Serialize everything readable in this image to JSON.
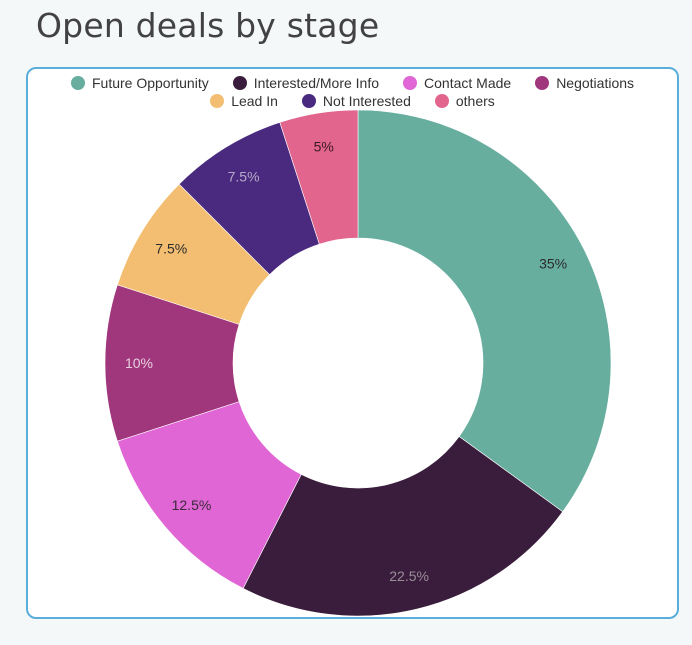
{
  "title": "Open deals by stage",
  "legend": {
    "rows": [
      [
        0,
        1,
        2,
        3
      ],
      [
        4,
        5,
        6
      ]
    ]
  },
  "slices": [
    {
      "label": "Future Opportunity",
      "value": 35,
      "display": "35%",
      "color": "#67ae9f",
      "text_color": "#2b2b2b"
    },
    {
      "label": "Interested/More Info",
      "value": 22.5,
      "display": "22.5%",
      "color": "#3a1d3c",
      "text_color": "#9a8d9a"
    },
    {
      "label": "Contact Made",
      "value": 12.5,
      "display": "12.5%",
      "color": "#e066d6",
      "text_color": "#3a2a3a"
    },
    {
      "label": "Negotiations",
      "value": 10,
      "display": "10%",
      "color": "#a0367b",
      "text_color": "#e8cfe0"
    },
    {
      "label": "Lead In",
      "value": 7.5,
      "display": "7.5%",
      "color": "#f3be72",
      "text_color": "#2b2b2b"
    },
    {
      "label": "Not Interested",
      "value": 7.5,
      "display": "7.5%",
      "color": "#4a2a7e",
      "text_color": "#b5a9c9"
    },
    {
      "label": "others",
      "value": 5,
      "display": "5%",
      "color": "#e2658e",
      "text_color": "#3a1a25"
    }
  ],
  "chart_data": {
    "type": "pie",
    "subtype": "donut",
    "title": "Open deals by stage",
    "categories": [
      "Future Opportunity",
      "Interested/More Info",
      "Contact Made",
      "Negotiations",
      "Lead In",
      "Not Interested",
      "others"
    ],
    "values": [
      35,
      22.5,
      12.5,
      10,
      7.5,
      7.5,
      5
    ],
    "unit": "%",
    "colors": [
      "#67ae9f",
      "#3a1d3c",
      "#e066d6",
      "#a0367b",
      "#f3be72",
      "#4a2a7e",
      "#e2658e"
    ],
    "legend_position": "top",
    "start_angle": "12 o'clock",
    "direction": "clockwise"
  }
}
